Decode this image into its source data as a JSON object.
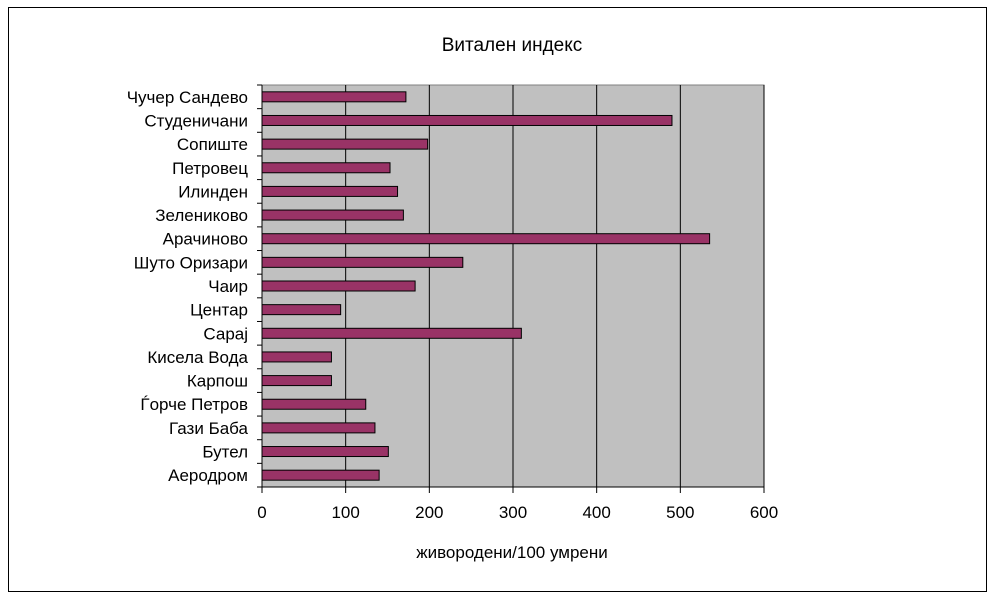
{
  "chart_data": {
    "type": "bar",
    "orientation": "horizontal",
    "title": "Витален индекс",
    "xlabel": "живородени/100 умрени",
    "ylabel": "",
    "xlim": [
      0,
      600
    ],
    "xticks": [
      0,
      100,
      200,
      300,
      400,
      500,
      600
    ],
    "grid": true,
    "legend": "none",
    "categories": [
      "Чучер Сандево",
      "Студеничани",
      "Сопиште",
      "Петровец",
      "Илинден",
      "Зелениково",
      "Арачиново",
      "Шуто Оризари",
      "Чаир",
      "Центар",
      "Сарај",
      "Кисела Вода",
      "Карпош",
      "Ѓорче Петров",
      "Гази Баба",
      "Бутел",
      "Аеродром"
    ],
    "values": [
      172,
      490,
      198,
      153,
      162,
      169,
      535,
      240,
      183,
      94,
      310,
      83,
      83,
      124,
      135,
      151,
      140
    ],
    "colors": {
      "bar": "#993366",
      "bar_border": "#000000",
      "plot_background": "#c0c0c0",
      "gridline": "#000000"
    }
  }
}
